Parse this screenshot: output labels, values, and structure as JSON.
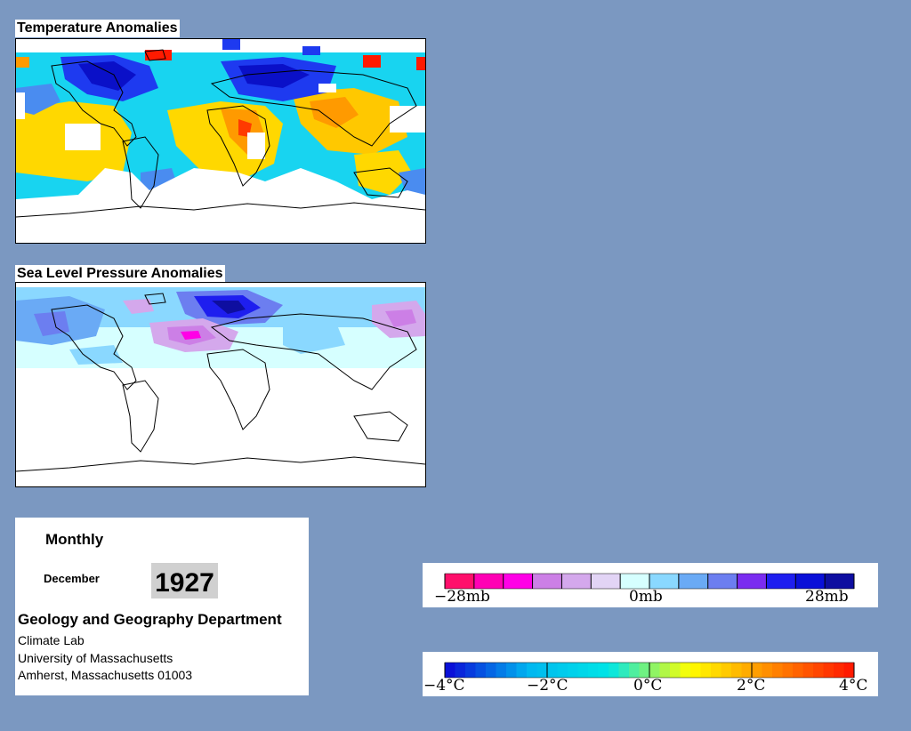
{
  "maps": {
    "temperature": {
      "title": "Temperature Anomalies"
    },
    "pressure": {
      "title": "Sea Level Pressure Anomalies"
    }
  },
  "info": {
    "period": "Monthly",
    "month": "December",
    "year": "1927",
    "department": "Geology and Geography Department",
    "lab": "Climate Lab",
    "university": "University of Massachusetts",
    "address": "Amherst, Massachusetts 01003"
  },
  "legends": {
    "pressure": {
      "labels": [
        "−28mb",
        "0mb",
        "28mb"
      ],
      "colors": [
        "#ff0f6b",
        "#ff00b4",
        "#ff00e6",
        "#cc7fe6",
        "#d4a8ec",
        "#e2d4f5",
        "#d6ffff",
        "#8ad8ff",
        "#6aaaf5",
        "#6c7ef0",
        "#7a2cf0",
        "#1e1eef",
        "#0a10d8",
        "#0e0ea0"
      ]
    },
    "temperature": {
      "labels": [
        "−4°C",
        "−2°C",
        "0°C",
        "2°C",
        "4°C"
      ],
      "colors": [
        "#0a10d8",
        "#00b8f0",
        "#00e6e6",
        "#ffff00",
        "#ff8c00",
        "#ff1a00"
      ]
    }
  }
}
